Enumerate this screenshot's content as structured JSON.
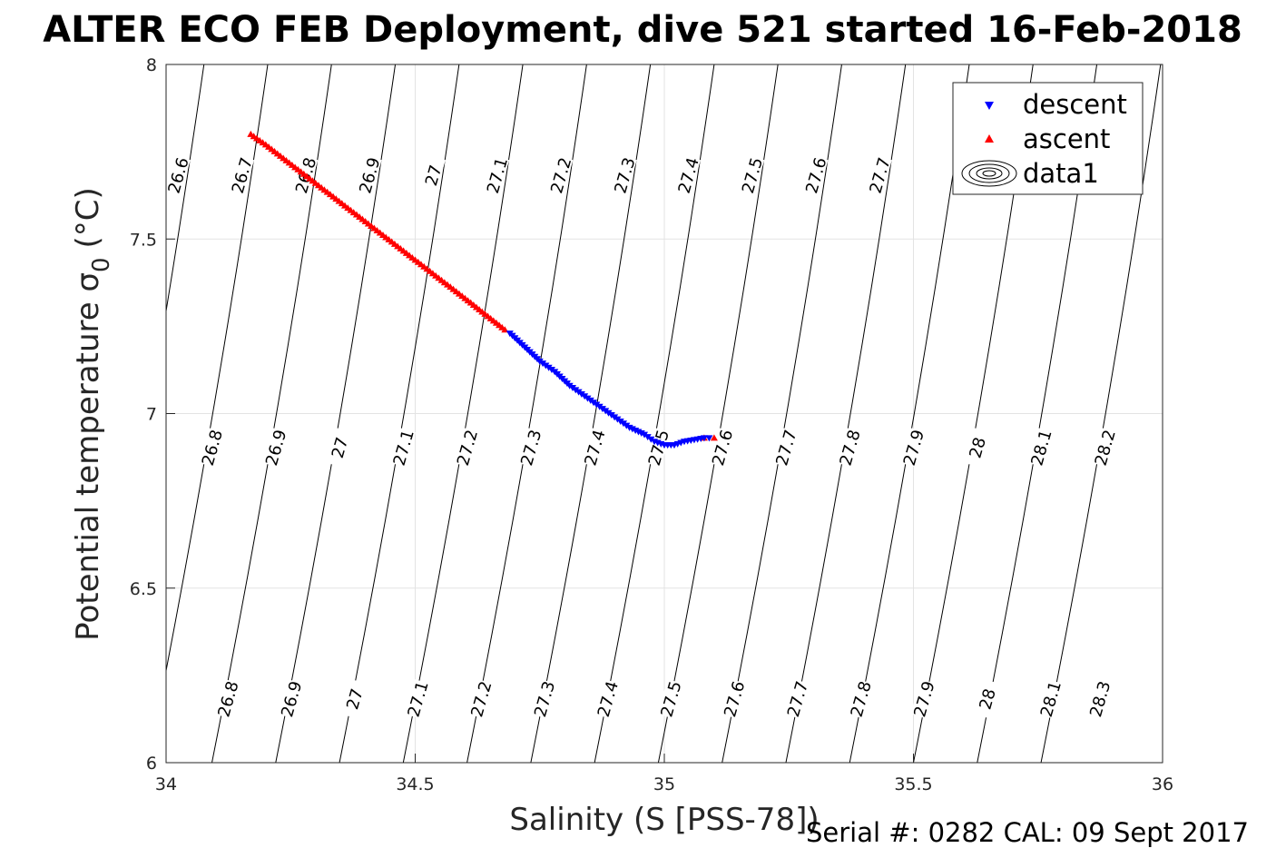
{
  "chart_data": {
    "type": "scatter",
    "title": "ALTER ECO FEB Deployment, dive 521 started 16-Feb-2018",
    "xlabel": "Salinity (S [PSS-78])",
    "ylabel": "Potential temperature σ",
    "ylabel_subscript": "0",
    "ylabel_unit": "(°C)",
    "xlim": [
      34,
      36
    ],
    "ylim": [
      6,
      8
    ],
    "x_ticks": [
      34,
      34.5,
      35,
      35.5,
      36
    ],
    "x_tick_labels": [
      "34",
      "34.5",
      "35",
      "35.5",
      "36"
    ],
    "y_ticks": [
      6,
      6.5,
      7,
      7.5,
      8
    ],
    "y_tick_labels": [
      "6",
      "6.5",
      "7",
      "7.5",
      "8"
    ],
    "grid": true,
    "legend_position": "top-right",
    "series": [
      {
        "name": "descent",
        "marker": "triangle-down",
        "color": "#0000ff",
        "x": [
          34.69,
          34.72,
          34.75,
          34.78,
          34.81,
          34.84,
          34.87,
          34.9,
          34.93,
          34.96,
          34.98,
          35.0,
          35.02,
          35.04,
          35.06,
          35.08,
          35.09
        ],
        "y": [
          7.23,
          7.19,
          7.15,
          7.12,
          7.08,
          7.05,
          7.02,
          6.99,
          6.96,
          6.94,
          6.92,
          6.91,
          6.91,
          6.92,
          6.925,
          6.93,
          6.93
        ]
      },
      {
        "name": "ascent",
        "marker": "triangle-up",
        "color": "#ff0000",
        "x": [
          35.1,
          35.08,
          34.68,
          34.6,
          34.5,
          34.4,
          34.3,
          34.2,
          34.17
        ],
        "y": [
          6.93,
          6.93,
          7.24,
          7.33,
          7.44,
          7.55,
          7.66,
          7.77,
          7.8
        ]
      }
    ],
    "contour_series_name": "data1",
    "contour_levels": [
      "26.6",
      "26.7",
      "26.8",
      "26.9",
      "27",
      "27.1",
      "27.2",
      "27.3",
      "27.4",
      "27.5",
      "27.6",
      "27.7",
      "27.8",
      "27.9",
      "28",
      "28.1",
      "28.2",
      "28.3"
    ],
    "contour_label_rows": [
      {
        "y": 6.18,
        "labels": [
          "26.8",
          "26.9",
          "27",
          "27.1",
          "27.2",
          "27.3",
          "27.4",
          "27.5",
          "27.6",
          "27.7",
          "27.8",
          "27.9",
          "28",
          "28.1",
          "28.3"
        ]
      },
      {
        "y": 6.9,
        "labels": [
          "26.7",
          "26.8",
          "26.9",
          "27",
          "27.1",
          "27.2",
          "27.3",
          "27.4",
          "27.5",
          "27.6",
          "27.7",
          "27.8",
          "27.9",
          "28",
          "28.1",
          "28.2"
        ]
      },
      {
        "y": 7.68,
        "labels": [
          "26.6",
          "26.7",
          "26.8",
          "26.9",
          "27",
          "27.1",
          "27.2",
          "27.3",
          "27.4",
          "27.5",
          "27.6",
          "27.7"
        ]
      }
    ]
  },
  "footer": {
    "serial_text": "Serial #: 0282  CAL: 09 Sept 2017"
  }
}
